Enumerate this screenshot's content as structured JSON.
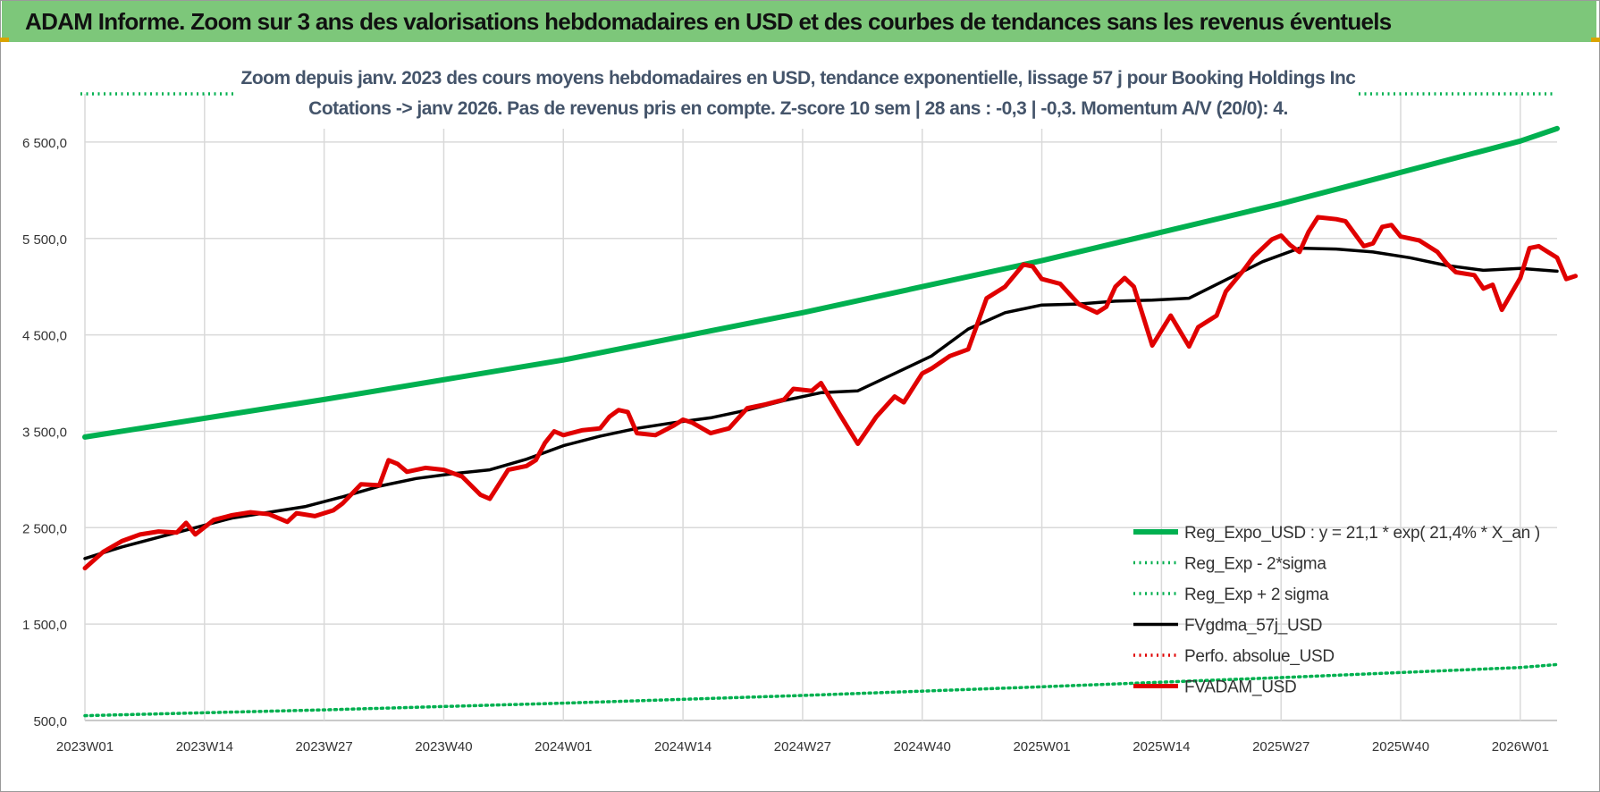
{
  "banner": {
    "text": "ADAM Informe. Zoom sur 3 ans des valorisations hebdomadaires en USD et des courbes de tendances sans les revenus éventuels"
  },
  "colors": {
    "banner_bg": "#7dc77a",
    "reg_expo": "#00b050",
    "band": "#00b050",
    "fvgdma": "#000000",
    "perfo": "#e00000",
    "fvadam": "#e00000",
    "title_text": "#44546a",
    "grid": "#d9d9d9"
  },
  "chart_data": {
    "type": "line",
    "title": [
      "Zoom depuis janv. 2023 des cours moyens hebdomadaires en USD, tendance exponentielle, lissage 57 j pour Booking Holdings Inc",
      "Cotations -> janv 2026. Pas de revenus pris en compte. Z-score 10 sem | 28 ans : -0,3 | -0,3. Momentum A/V (20/0): 4."
    ],
    "xlabel": "",
    "ylabel": "",
    "ylim": [
      500,
      7000
    ],
    "yticks": [
      "500,0",
      "1 500,0",
      "2 500,0",
      "3 500,0",
      "4 500,0",
      "5 500,0",
      "6 500,0"
    ],
    "ytick_values": [
      500,
      1500,
      2500,
      3500,
      4500,
      5500,
      6500
    ],
    "xlim": [
      "2023W01",
      "2026W05"
    ],
    "xticks": [
      "2023W01",
      "2023W14",
      "2023W27",
      "2023W40",
      "2024W01",
      "2024W14",
      "2024W27",
      "2024W40",
      "2025W01",
      "2025W14",
      "2025W27",
      "2025W40",
      "2026W01"
    ],
    "grid": true,
    "legend_position": "bottom-right",
    "series": [
      {
        "name": "Reg_Expo_USD : y = 21,1 * exp( 21,4% *  X_an )",
        "style": "solid-thick",
        "points": [
          [
            "2023W01",
            3440
          ],
          [
            "2023W27",
            3830
          ],
          [
            "2024W01",
            4240
          ],
          [
            "2024W27",
            4730
          ],
          [
            "2025W01",
            5270
          ],
          [
            "2025W27",
            5860
          ],
          [
            "2026W01",
            6510
          ],
          [
            "2026W05",
            6640
          ]
        ]
      },
      {
        "name": "Reg_Exp - 2*sigma",
        "style": "dotted",
        "points": [
          [
            "2023W01",
            550
          ],
          [
            "2023W27",
            610
          ],
          [
            "2024W01",
            680
          ],
          [
            "2024W27",
            760
          ],
          [
            "2025W01",
            850
          ],
          [
            "2025W27",
            945
          ],
          [
            "2026W01",
            1050
          ],
          [
            "2026W05",
            1080
          ]
        ]
      },
      {
        "name": "Reg_Exp + 2 sigma",
        "style": "dotted",
        "points": [
          [
            "2023W01",
            7000
          ],
          [
            "2026W05",
            7000
          ]
        ]
      },
      {
        "name": "FVgdma_57j_USD",
        "style": "solid",
        "points": [
          [
            "2023W01",
            2180
          ],
          [
            "2023W05",
            2300
          ],
          [
            "2023W09",
            2400
          ],
          [
            "2023W13",
            2500
          ],
          [
            "2023W17",
            2600
          ],
          [
            "2023W21",
            2660
          ],
          [
            "2023W25",
            2720
          ],
          [
            "2023W29",
            2820
          ],
          [
            "2023W33",
            2930
          ],
          [
            "2023W37",
            3010
          ],
          [
            "2023W41",
            3060
          ],
          [
            "2023W45",
            3100
          ],
          [
            "2023W49",
            3210
          ],
          [
            "2024W01",
            3350
          ],
          [
            "2024W05",
            3450
          ],
          [
            "2024W09",
            3530
          ],
          [
            "2024W13",
            3590
          ],
          [
            "2024W17",
            3640
          ],
          [
            "2024W21",
            3720
          ],
          [
            "2024W25",
            3820
          ],
          [
            "2024W29",
            3900
          ],
          [
            "2024W33",
            3920
          ],
          [
            "2024W37",
            4100
          ],
          [
            "2024W41",
            4280
          ],
          [
            "2024W45",
            4560
          ],
          [
            "2024W49",
            4730
          ],
          [
            "2025W01",
            4810
          ],
          [
            "2025W05",
            4820
          ],
          [
            "2025W09",
            4850
          ],
          [
            "2025W13",
            4860
          ],
          [
            "2025W17",
            4880
          ],
          [
            "2025W21",
            5070
          ],
          [
            "2025W25",
            5260
          ],
          [
            "2025W29",
            5400
          ],
          [
            "2025W33",
            5390
          ],
          [
            "2025W37",
            5360
          ],
          [
            "2025W41",
            5300
          ],
          [
            "2025W45",
            5220
          ],
          [
            "2025W49",
            5170
          ],
          [
            "2026W01",
            5190
          ],
          [
            "2026W05",
            5160
          ]
        ]
      },
      {
        "name": "Perfo. absolue_USD",
        "style": "dotted",
        "points": []
      },
      {
        "name": "FVADAM_USD",
        "style": "solid-thick",
        "points": [
          [
            "2023W01",
            2080
          ],
          [
            "2023W03",
            2250
          ],
          [
            "2023W05",
            2360
          ],
          [
            "2023W07",
            2430
          ],
          [
            "2023W09",
            2460
          ],
          [
            "2023W11",
            2450
          ],
          [
            "2023W12",
            2550
          ],
          [
            "2023W13",
            2430
          ],
          [
            "2023W15",
            2580
          ],
          [
            "2023W17",
            2630
          ],
          [
            "2023W19",
            2660
          ],
          [
            "2023W21",
            2640
          ],
          [
            "2023W23",
            2560
          ],
          [
            "2023W24",
            2650
          ],
          [
            "2023W26",
            2620
          ],
          [
            "2023W28",
            2680
          ],
          [
            "2023W29",
            2750
          ],
          [
            "2023W31",
            2950
          ],
          [
            "2023W33",
            2940
          ],
          [
            "2023W34",
            3200
          ],
          [
            "2023W35",
            3160
          ],
          [
            "2023W36",
            3080
          ],
          [
            "2023W38",
            3120
          ],
          [
            "2023W40",
            3100
          ],
          [
            "2023W42",
            3030
          ],
          [
            "2023W44",
            2840
          ],
          [
            "2023W45",
            2800
          ],
          [
            "2023W47",
            3100
          ],
          [
            "2023W49",
            3140
          ],
          [
            "2023W50",
            3200
          ],
          [
            "2023W51",
            3380
          ],
          [
            "2023W52",
            3500
          ],
          [
            "2024W01",
            3460
          ],
          [
            "2024W03",
            3510
          ],
          [
            "2024W05",
            3530
          ],
          [
            "2024W06",
            3650
          ],
          [
            "2024W07",
            3720
          ],
          [
            "2024W08",
            3700
          ],
          [
            "2024W09",
            3480
          ],
          [
            "2024W11",
            3460
          ],
          [
            "2024W13",
            3560
          ],
          [
            "2024W14",
            3620
          ],
          [
            "2024W15",
            3590
          ],
          [
            "2024W17",
            3480
          ],
          [
            "2024W19",
            3530
          ],
          [
            "2024W21",
            3740
          ],
          [
            "2024W23",
            3780
          ],
          [
            "2024W25",
            3830
          ],
          [
            "2024W26",
            3940
          ],
          [
            "2024W28",
            3920
          ],
          [
            "2024W29",
            4000
          ],
          [
            "2024W31",
            3680
          ],
          [
            "2024W33",
            3370
          ],
          [
            "2024W35",
            3650
          ],
          [
            "2024W37",
            3860
          ],
          [
            "2024W38",
            3800
          ],
          [
            "2024W40",
            4100
          ],
          [
            "2024W41",
            4150
          ],
          [
            "2024W43",
            4280
          ],
          [
            "2024W45",
            4350
          ],
          [
            "2024W47",
            4880
          ],
          [
            "2024W49",
            5000
          ],
          [
            "2024W51",
            5230
          ],
          [
            "2024W52",
            5210
          ],
          [
            "2025W01",
            5080
          ],
          [
            "2025W03",
            5030
          ],
          [
            "2025W05",
            4820
          ],
          [
            "2025W07",
            4730
          ],
          [
            "2025W08",
            4790
          ],
          [
            "2025W09",
            5000
          ],
          [
            "2025W10",
            5090
          ],
          [
            "2025W11",
            5000
          ],
          [
            "2025W13",
            4390
          ],
          [
            "2025W15",
            4700
          ],
          [
            "2025W17",
            4380
          ],
          [
            "2025W18",
            4580
          ],
          [
            "2025W20",
            4700
          ],
          [
            "2025W21",
            4950
          ],
          [
            "2025W23",
            5180
          ],
          [
            "2025W24",
            5310
          ],
          [
            "2025W26",
            5490
          ],
          [
            "2025W27",
            5530
          ],
          [
            "2025W28",
            5430
          ],
          [
            "2025W29",
            5360
          ],
          [
            "2025W30",
            5570
          ],
          [
            "2025W31",
            5720
          ],
          [
            "2025W33",
            5700
          ],
          [
            "2025W34",
            5680
          ],
          [
            "2025W36",
            5420
          ],
          [
            "2025W37",
            5450
          ],
          [
            "2025W38",
            5620
          ],
          [
            "2025W39",
            5640
          ],
          [
            "2025W40",
            5520
          ],
          [
            "2025W42",
            5480
          ],
          [
            "2025W44",
            5360
          ],
          [
            "2025W45",
            5240
          ],
          [
            "2025W46",
            5150
          ],
          [
            "2025W48",
            5120
          ],
          [
            "2025W49",
            4980
          ],
          [
            "2025W50",
            5020
          ],
          [
            "2025W51",
            4760
          ],
          [
            "2026W01",
            5090
          ],
          [
            "2026W02",
            5400
          ],
          [
            "2026W03",
            5420
          ],
          [
            "2026W04",
            5360
          ],
          [
            "2026W05",
            5300
          ],
          [
            "2026W06",
            5080
          ],
          [
            "2026W07",
            5110
          ]
        ]
      }
    ]
  }
}
